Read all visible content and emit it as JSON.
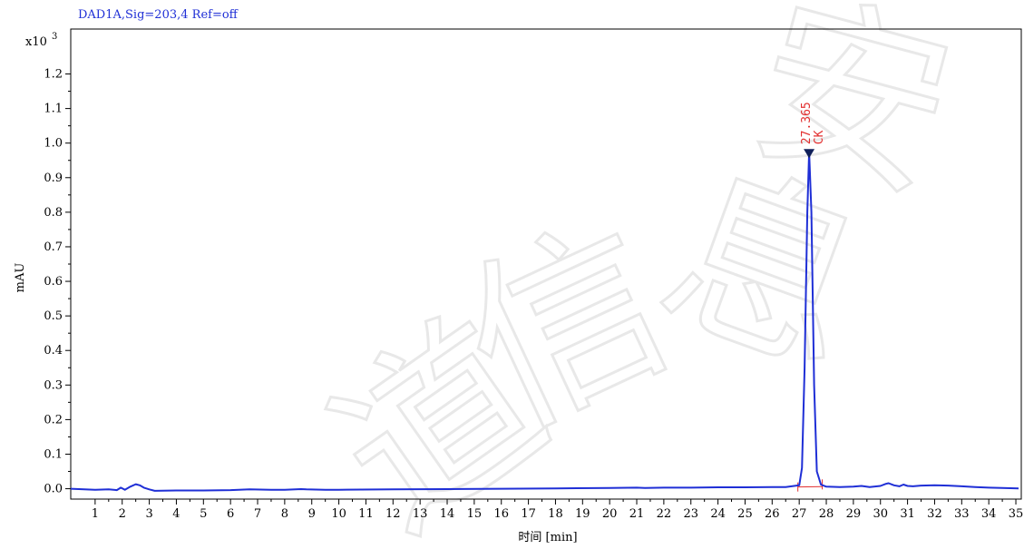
{
  "header": {
    "signal": "DAD1A,Sig=203,4  Ref=off"
  },
  "chart_data": {
    "type": "line",
    "title": "DAD1A,Sig=203,4  Ref=off",
    "xlabel": "时间 [min]",
    "ylabel": "mAU",
    "y_multiplier": "x10",
    "y_multiplier_exp": "3",
    "xlim": [
      0.1,
      35.2
    ],
    "ylim": [
      -0.03,
      1.33
    ],
    "x_ticks": [
      1,
      2,
      3,
      4,
      5,
      6,
      7,
      8,
      9,
      10,
      11,
      12,
      13,
      14,
      15,
      16,
      17,
      18,
      19,
      20,
      21,
      22,
      23,
      24,
      25,
      26,
      27,
      28,
      29,
      30,
      31,
      32,
      33,
      34,
      35
    ],
    "y_ticks": [
      0.0,
      0.1,
      0.2,
      0.3,
      0.4,
      0.5,
      0.6,
      0.7,
      0.8,
      0.9,
      1.0,
      1.1,
      1.2
    ],
    "y_tick_labels": [
      "0.0",
      "0.1",
      "0.2",
      "0.3",
      "0.4",
      "0.5",
      "0.6",
      "0.7",
      "0.8",
      "0.9",
      "1.0",
      "1.1",
      "1.2"
    ],
    "line_color": "#1f2fd6",
    "baseline_color": "#e23030",
    "series": [
      {
        "x": [
          0.1,
          1.0,
          1.5,
          1.8,
          1.95,
          2.1,
          2.3,
          2.5,
          2.65,
          2.8,
          3.0,
          3.2,
          4,
          5,
          6,
          6.7,
          7.5,
          8,
          8.6,
          8.8,
          9.5,
          10,
          12,
          14,
          16,
          18,
          20,
          21,
          21.3,
          22,
          23,
          24,
          25,
          26,
          26.5,
          27.0,
          27.1,
          27.2,
          27.3,
          27.365,
          27.45,
          27.55,
          27.65,
          27.8,
          28,
          28.5,
          29,
          29.3,
          29.6,
          30,
          30.2,
          30.3,
          30.5,
          30.7,
          30.85,
          31,
          31.2,
          31.5,
          32,
          32.5,
          33,
          33.5,
          34,
          34.5,
          35.1
        ],
        "y": [
          0.0,
          -0.003,
          -0.002,
          -0.004,
          0.003,
          -0.003,
          0.006,
          0.013,
          0.01,
          0.003,
          -0.002,
          -0.006,
          -0.005,
          -0.005,
          -0.004,
          -0.002,
          -0.003,
          -0.003,
          -0.001,
          -0.002,
          -0.003,
          -0.003,
          -0.002,
          -0.001,
          0.0,
          0.001,
          0.002,
          0.003,
          0.002,
          0.003,
          0.003,
          0.004,
          0.004,
          0.005,
          0.005,
          0.01,
          0.06,
          0.35,
          0.8,
          0.975,
          0.8,
          0.3,
          0.05,
          0.012,
          0.006,
          0.005,
          0.006,
          0.008,
          0.005,
          0.008,
          0.014,
          0.016,
          0.01,
          0.007,
          0.012,
          0.008,
          0.007,
          0.009,
          0.01,
          0.009,
          0.007,
          0.005,
          0.003,
          0.002,
          0.001
        ]
      }
    ],
    "baseline": {
      "x": [
        26.95,
        27.85
      ],
      "y": [
        0.005,
        0.006
      ]
    },
    "peaks": [
      {
        "rt": 27.365,
        "label": "27.365",
        "name": "CK",
        "height": 0.975
      }
    ],
    "watermark": "道信息安"
  }
}
